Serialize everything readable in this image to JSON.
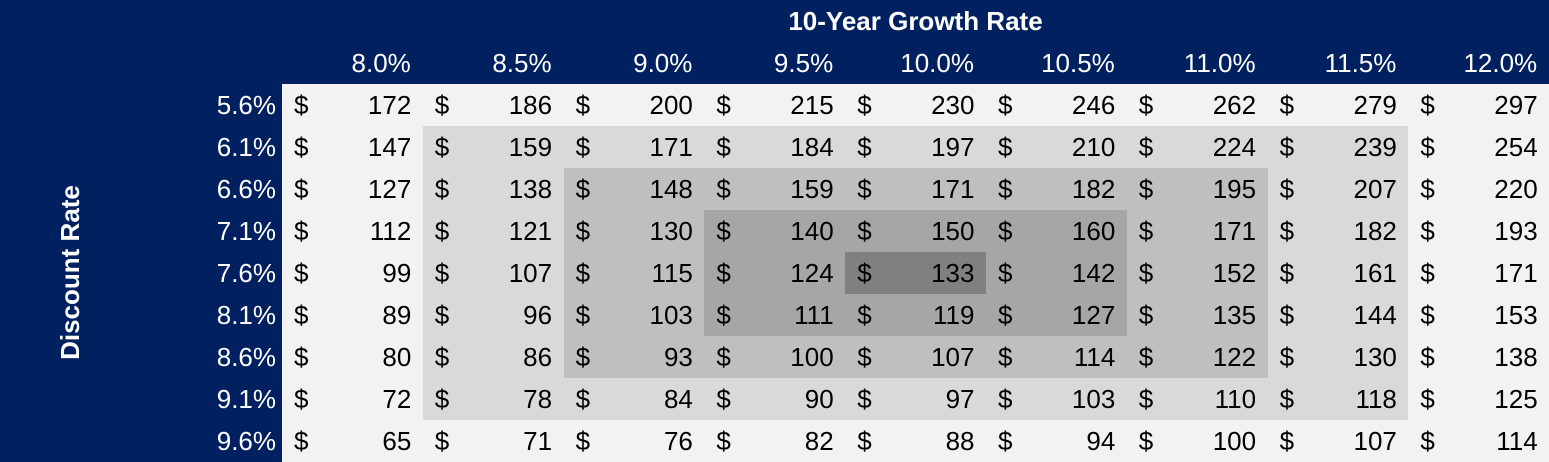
{
  "chart_data": {
    "type": "table",
    "title": "",
    "xlabel": "10-Year Growth Rate",
    "ylabel": "Discount Rate",
    "currency_symbol": "$",
    "columns": [
      "8.0%",
      "8.5%",
      "9.0%",
      "9.5%",
      "10.0%",
      "10.5%",
      "11.0%",
      "11.5%",
      "12.0%"
    ],
    "rows": [
      "5.6%",
      "6.1%",
      "6.6%",
      "7.1%",
      "7.6%",
      "8.1%",
      "8.6%",
      "9.1%",
      "9.6%"
    ],
    "values": [
      [
        "172",
        "186",
        "200",
        "215",
        "230",
        "246",
        "262",
        "279",
        "297"
      ],
      [
        "147",
        "159",
        "171",
        "184",
        "197",
        "210",
        "224",
        "239",
        "254"
      ],
      [
        "127",
        "138",
        "148",
        "159",
        "171",
        "182",
        "195",
        "207",
        "220"
      ],
      [
        "112",
        "121",
        "130",
        "140",
        "150",
        "160",
        "171",
        "182",
        "193"
      ],
      [
        "99",
        "107",
        "115",
        "124",
        "133",
        "142",
        "152",
        "161",
        "171"
      ],
      [
        "89",
        "96",
        "103",
        "111",
        "119",
        "127",
        "135",
        "144",
        "153"
      ],
      [
        "80",
        "86",
        "93",
        "100",
        "107",
        "114",
        "122",
        "130",
        "138"
      ],
      [
        "72",
        "78",
        "84",
        "90",
        "97",
        "103",
        "110",
        "118",
        "125"
      ],
      [
        "65",
        "71",
        "76",
        "82",
        "88",
        "94",
        "100",
        "107",
        "114"
      ]
    ],
    "shading": {
      "base_color": "#f2f2f2",
      "ring_colors": [
        "#d9d9d9",
        "#bfbfbf",
        "#a6a6a6",
        "#808080"
      ]
    }
  }
}
